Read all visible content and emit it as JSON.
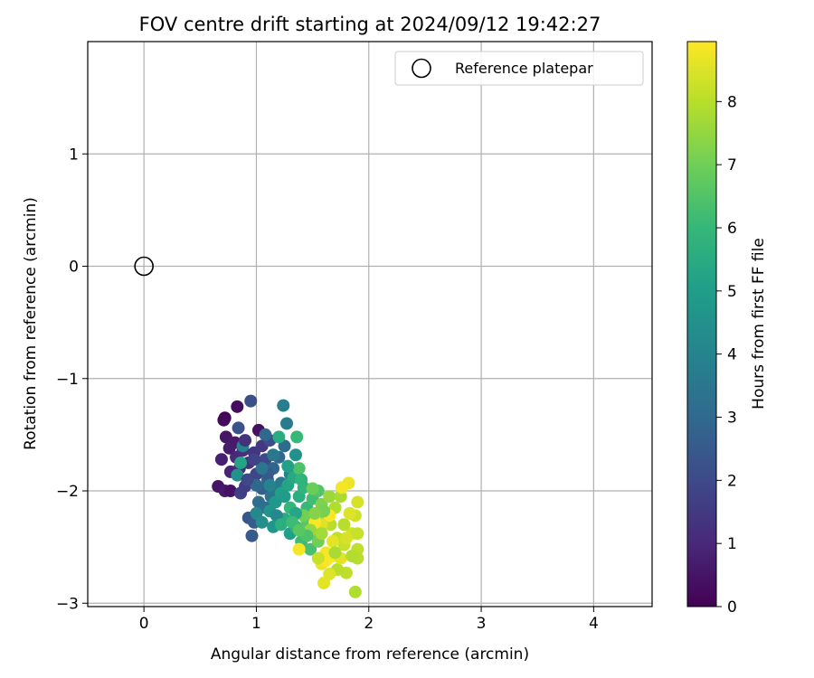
{
  "chart_data": {
    "type": "scatter",
    "title": "FOV centre drift starting at 2024/09/12 19:42:27",
    "xlabel": "Angular distance from reference (arcmin)",
    "ylabel": "Rotation from reference (arcmin)",
    "xlim": [
      -0.5,
      4.52
    ],
    "ylim": [
      -3.03,
      2.0
    ],
    "xticks": [
      0,
      1,
      2,
      3,
      4
    ],
    "yticks": [
      -3,
      -2,
      -1,
      0,
      1
    ],
    "grid": true,
    "legend": {
      "placement": "top-right",
      "entries": [
        "Reference platepar"
      ]
    },
    "reference_point": {
      "name": "Reference platepar",
      "x": 0,
      "y": 0,
      "marker": "open-circle"
    },
    "colorbar": {
      "label": "Hours from first FF file",
      "colormap": "viridis",
      "range": [
        0,
        8.95
      ],
      "ticks": [
        0,
        1,
        2,
        3,
        4,
        5,
        6,
        7,
        8
      ]
    },
    "points": [
      {
        "x": 0.72,
        "y": -1.35,
        "c": 0.1
      },
      {
        "x": 0.71,
        "y": -1.37,
        "c": 0.2
      },
      {
        "x": 0.83,
        "y": -1.25,
        "c": 0.3
      },
      {
        "x": 1.02,
        "y": -1.46,
        "c": 0.4
      },
      {
        "x": 0.73,
        "y": -1.52,
        "c": 0.5
      },
      {
        "x": 0.81,
        "y": -1.57,
        "c": 0.6
      },
      {
        "x": 0.76,
        "y": -1.62,
        "c": 0.7
      },
      {
        "x": 0.69,
        "y": -1.72,
        "c": 0.8
      },
      {
        "x": 0.77,
        "y": -1.83,
        "c": 0.9
      },
      {
        "x": 0.66,
        "y": -1.96,
        "c": 0.5
      },
      {
        "x": 0.72,
        "y": -2.0,
        "c": 0.6
      },
      {
        "x": 0.77,
        "y": -2.0,
        "c": 0.4
      },
      {
        "x": 0.82,
        "y": -1.7,
        "c": 1.0
      },
      {
        "x": 0.85,
        "y": -1.8,
        "c": 1.1
      },
      {
        "x": 0.88,
        "y": -1.64,
        "c": 1.2
      },
      {
        "x": 0.93,
        "y": -1.75,
        "c": 1.3
      },
      {
        "x": 0.98,
        "y": -1.66,
        "c": 1.4
      },
      {
        "x": 1.05,
        "y": -1.6,
        "c": 1.5
      },
      {
        "x": 0.9,
        "y": -1.96,
        "c": 1.6
      },
      {
        "x": 0.86,
        "y": -2.02,
        "c": 1.7
      },
      {
        "x": 0.95,
        "y": -1.9,
        "c": 1.8
      },
      {
        "x": 1.0,
        "y": -1.85,
        "c": 1.9
      },
      {
        "x": 1.08,
        "y": -1.72,
        "c": 2.0
      },
      {
        "x": 1.12,
        "y": -1.55,
        "c": 2.1
      },
      {
        "x": 0.95,
        "y": -1.2,
        "c": 2.2
      },
      {
        "x": 0.84,
        "y": -1.44,
        "c": 2.3
      },
      {
        "x": 0.93,
        "y": -2.24,
        "c": 2.4
      },
      {
        "x": 0.96,
        "y": -2.4,
        "c": 2.5
      },
      {
        "x": 0.98,
        "y": -2.28,
        "c": 2.6
      },
      {
        "x": 1.05,
        "y": -1.98,
        "c": 2.7
      },
      {
        "x": 1.1,
        "y": -1.9,
        "c": 2.8
      },
      {
        "x": 1.15,
        "y": -1.8,
        "c": 2.9
      },
      {
        "x": 1.2,
        "y": -1.7,
        "c": 3.0
      },
      {
        "x": 1.25,
        "y": -1.6,
        "c": 3.1
      },
      {
        "x": 1.02,
        "y": -2.1,
        "c": 3.2
      },
      {
        "x": 1.08,
        "y": -2.15,
        "c": 3.3
      },
      {
        "x": 1.13,
        "y": -2.05,
        "c": 3.4
      },
      {
        "x": 1.18,
        "y": -2.0,
        "c": 3.5
      },
      {
        "x": 1.22,
        "y": -1.93,
        "c": 3.6
      },
      {
        "x": 1.27,
        "y": -1.4,
        "c": 3.7
      },
      {
        "x": 1.24,
        "y": -1.24,
        "c": 3.8
      },
      {
        "x": 1.3,
        "y": -1.85,
        "c": 3.9
      },
      {
        "x": 0.88,
        "y": -1.6,
        "c": 4.0
      },
      {
        "x": 1.0,
        "y": -2.2,
        "c": 4.2
      },
      {
        "x": 1.05,
        "y": -2.28,
        "c": 4.4
      },
      {
        "x": 1.12,
        "y": -2.18,
        "c": 4.6
      },
      {
        "x": 1.17,
        "y": -2.1,
        "c": 4.8
      },
      {
        "x": 1.22,
        "y": -2.02,
        "c": 5.0
      },
      {
        "x": 1.28,
        "y": -1.95,
        "c": 5.2
      },
      {
        "x": 1.33,
        "y": -1.88,
        "c": 5.4
      },
      {
        "x": 1.35,
        "y": -1.68,
        "c": 4.5
      },
      {
        "x": 0.83,
        "y": -1.86,
        "c": 4.5
      },
      {
        "x": 0.86,
        "y": -1.75,
        "c": 5.2
      },
      {
        "x": 1.3,
        "y": -2.38,
        "c": 5.0
      },
      {
        "x": 1.25,
        "y": -2.25,
        "c": 5.5
      },
      {
        "x": 1.38,
        "y": -2.05,
        "c": 5.6
      },
      {
        "x": 1.42,
        "y": -1.97,
        "c": 5.8
      },
      {
        "x": 1.35,
        "y": -2.32,
        "c": 5.7
      },
      {
        "x": 1.45,
        "y": -2.15,
        "c": 6.0
      },
      {
        "x": 1.5,
        "y": -2.07,
        "c": 6.2
      },
      {
        "x": 1.36,
        "y": -1.52,
        "c": 6.0
      },
      {
        "x": 1.4,
        "y": -2.45,
        "c": 6.1
      },
      {
        "x": 1.48,
        "y": -2.52,
        "c": 6.3
      },
      {
        "x": 1.55,
        "y": -2.0,
        "c": 6.5
      },
      {
        "x": 1.45,
        "y": -2.27,
        "c": 6.6
      },
      {
        "x": 1.5,
        "y": -2.38,
        "c": 6.8
      },
      {
        "x": 1.55,
        "y": -2.45,
        "c": 7.0
      },
      {
        "x": 1.58,
        "y": -2.12,
        "c": 7.2
      },
      {
        "x": 1.62,
        "y": -2.25,
        "c": 7.4
      },
      {
        "x": 1.38,
        "y": -1.8,
        "c": 6.4
      },
      {
        "x": 1.3,
        "y": -2.15,
        "c": 5.9
      },
      {
        "x": 1.65,
        "y": -2.05,
        "c": 7.6
      },
      {
        "x": 1.75,
        "y": -2.05,
        "c": 7.8
      },
      {
        "x": 1.7,
        "y": -2.15,
        "c": 7.9
      },
      {
        "x": 1.66,
        "y": -2.3,
        "c": 8.0
      },
      {
        "x": 1.72,
        "y": -2.42,
        "c": 8.1
      },
      {
        "x": 1.78,
        "y": -2.48,
        "c": 8.2
      },
      {
        "x": 1.85,
        "y": -2.38,
        "c": 8.3
      },
      {
        "x": 1.9,
        "y": -2.1,
        "c": 8.4
      },
      {
        "x": 1.88,
        "y": -2.22,
        "c": 8.3
      },
      {
        "x": 1.9,
        "y": -2.38,
        "c": 8.2
      },
      {
        "x": 1.9,
        "y": -2.52,
        "c": 8.1
      },
      {
        "x": 1.9,
        "y": -2.6,
        "c": 8.0
      },
      {
        "x": 1.88,
        "y": -2.9,
        "c": 7.9
      },
      {
        "x": 1.8,
        "y": -2.73,
        "c": 8.1
      },
      {
        "x": 1.72,
        "y": -2.7,
        "c": 8.0
      },
      {
        "x": 1.65,
        "y": -2.74,
        "c": 8.5
      },
      {
        "x": 1.6,
        "y": -2.82,
        "c": 8.6
      },
      {
        "x": 1.58,
        "y": -2.65,
        "c": 8.7
      },
      {
        "x": 1.62,
        "y": -2.55,
        "c": 8.8
      },
      {
        "x": 1.68,
        "y": -2.58,
        "c": 8.9
      },
      {
        "x": 1.75,
        "y": -2.6,
        "c": 8.6
      },
      {
        "x": 1.82,
        "y": -1.93,
        "c": 8.7
      },
      {
        "x": 1.76,
        "y": -1.97,
        "c": 8.8
      },
      {
        "x": 1.65,
        "y": -2.22,
        "c": 8.9
      },
      {
        "x": 1.58,
        "y": -2.3,
        "c": 8.5
      },
      {
        "x": 1.52,
        "y": -2.28,
        "c": 8.9
      },
      {
        "x": 1.38,
        "y": -2.52,
        "c": 8.8
      },
      {
        "x": 1.62,
        "y": -2.62,
        "c": 8.9
      },
      {
        "x": 1.8,
        "y": -2.42,
        "c": 8.4
      },
      {
        "x": 1.83,
        "y": -2.2,
        "c": 8.5
      },
      {
        "x": 1.68,
        "y": -2.45,
        "c": 8.6
      },
      {
        "x": 1.55,
        "y": -2.6,
        "c": 8.2
      },
      {
        "x": 1.48,
        "y": -2.35,
        "c": 7.5
      },
      {
        "x": 1.42,
        "y": -2.22,
        "c": 7.0
      },
      {
        "x": 1.6,
        "y": -2.18,
        "c": 7.1
      },
      {
        "x": 1.2,
        "y": -1.52,
        "c": 5.5
      },
      {
        "x": 1.28,
        "y": -1.78,
        "c": 5.1
      },
      {
        "x": 1.15,
        "y": -1.68,
        "c": 3.6
      },
      {
        "x": 1.1,
        "y": -1.85,
        "c": 2.5
      },
      {
        "x": 1.0,
        "y": -1.95,
        "c": 3.0
      },
      {
        "x": 0.92,
        "y": -1.9,
        "c": 2.0
      },
      {
        "x": 1.08,
        "y": -1.5,
        "c": 3.0
      },
      {
        "x": 1.18,
        "y": -2.22,
        "c": 4.2
      },
      {
        "x": 1.35,
        "y": -2.2,
        "c": 5.3
      },
      {
        "x": 1.4,
        "y": -1.9,
        "c": 5.8
      },
      {
        "x": 1.45,
        "y": -2.4,
        "c": 6.4
      },
      {
        "x": 1.5,
        "y": -1.98,
        "c": 6.9
      },
      {
        "x": 1.25,
        "y": -2.05,
        "c": 4.9
      },
      {
        "x": 1.12,
        "y": -1.95,
        "c": 4.0
      },
      {
        "x": 1.05,
        "y": -1.8,
        "c": 3.5
      },
      {
        "x": 0.98,
        "y": -1.72,
        "c": 1.8
      },
      {
        "x": 0.9,
        "y": -1.55,
        "c": 1.3
      },
      {
        "x": 1.15,
        "y": -2.32,
        "c": 4.7
      },
      {
        "x": 1.22,
        "y": -2.3,
        "c": 5.6
      },
      {
        "x": 1.32,
        "y": -2.28,
        "c": 6.1
      },
      {
        "x": 1.38,
        "y": -2.35,
        "c": 6.6
      },
      {
        "x": 1.52,
        "y": -2.2,
        "c": 7.3
      },
      {
        "x": 1.58,
        "y": -2.38,
        "c": 7.7
      },
      {
        "x": 1.7,
        "y": -2.55,
        "c": 7.8
      },
      {
        "x": 1.78,
        "y": -2.3,
        "c": 8.0
      },
      {
        "x": 1.85,
        "y": -2.58,
        "c": 7.9
      }
    ]
  }
}
